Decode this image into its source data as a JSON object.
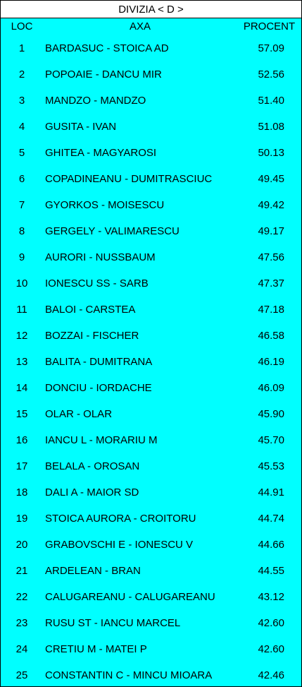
{
  "title": "DIVIZIA < D >",
  "columns": {
    "loc": "LOC",
    "axa": "AXA",
    "procent": "PROCENT"
  },
  "colors": {
    "background": "#00ffff",
    "title_background": "#ffffff",
    "text": "#000000"
  },
  "rows": [
    {
      "loc": "1",
      "axa": "BARDASUC - STOICA AD",
      "procent": "57.09"
    },
    {
      "loc": "2",
      "axa": "POPOAIE - DANCU MIR",
      "procent": "52.56"
    },
    {
      "loc": "3",
      "axa": "MANDZO - MANDZO",
      "procent": "51.40"
    },
    {
      "loc": "4",
      "axa": "GUSITA - IVAN",
      "procent": "51.08"
    },
    {
      "loc": "5",
      "axa": "GHITEA - MAGYAROSI",
      "procent": "50.13"
    },
    {
      "loc": "6",
      "axa": "COPADINEANU - DUMITRASCIUC",
      "procent": "49.45"
    },
    {
      "loc": "7",
      "axa": "GYORKOS - MOISESCU",
      "procent": "49.42"
    },
    {
      "loc": "8",
      "axa": "GERGELY - VALIMARESCU",
      "procent": "49.17"
    },
    {
      "loc": "9",
      "axa": "AURORI - NUSSBAUM",
      "procent": "47.56"
    },
    {
      "loc": "10",
      "axa": "IONESCU SS - SARB",
      "procent": "47.37"
    },
    {
      "loc": "11",
      "axa": "BALOI - CARSTEA",
      "procent": "47.18"
    },
    {
      "loc": "12",
      "axa": "BOZZAI - FISCHER",
      "procent": "46.58"
    },
    {
      "loc": "13",
      "axa": "BALITA - DUMITRANA",
      "procent": "46.19"
    },
    {
      "loc": "14",
      "axa": "DONCIU - IORDACHE",
      "procent": "46.09"
    },
    {
      "loc": "15",
      "axa": "OLAR - OLAR",
      "procent": "45.90"
    },
    {
      "loc": "16",
      "axa": "IANCU L - MORARIU M",
      "procent": "45.70"
    },
    {
      "loc": "17",
      "axa": "BELALA - OROSAN",
      "procent": "45.53"
    },
    {
      "loc": "18",
      "axa": "DALI A - MAIOR SD",
      "procent": "44.91"
    },
    {
      "loc": "19",
      "axa": "STOICA AURORA - CROITORU",
      "procent": "44.74"
    },
    {
      "loc": "20",
      "axa": "GRABOVSCHI E - IONESCU V",
      "procent": "44.66"
    },
    {
      "loc": "21",
      "axa": "ARDELEAN - BRAN",
      "procent": "44.55"
    },
    {
      "loc": "22",
      "axa": "CALUGAREANU - CALUGAREANU",
      "procent": "43.12"
    },
    {
      "loc": "23",
      "axa": "RUSU ST - IANCU MARCEL",
      "procent": "42.60"
    },
    {
      "loc": "24",
      "axa": "CRETIU M - MATEI P",
      "procent": "42.60"
    },
    {
      "loc": "25",
      "axa": "CONSTANTIN C - MINCU MIOARA",
      "procent": "42.46"
    }
  ]
}
